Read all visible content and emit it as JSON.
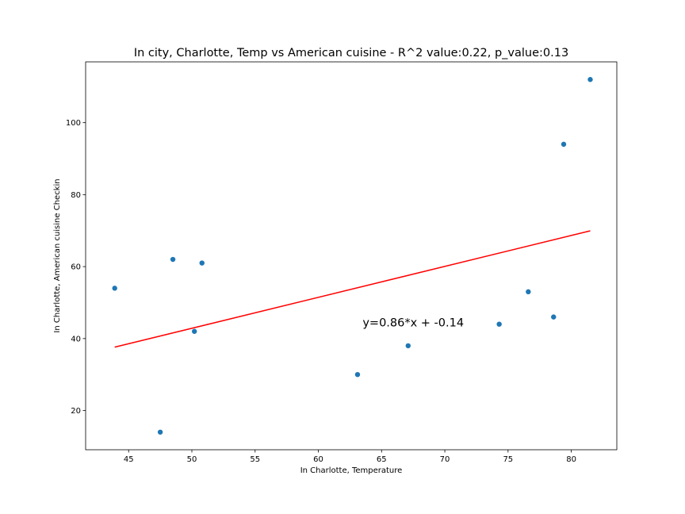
{
  "chart_data": {
    "type": "scatter",
    "title": "In city, Charlotte, Temp vs American cuisine - R^2 value:0.22, p_value:0.13",
    "xlabel": "In Charlotte,  Temperature",
    "ylabel": "In Charlotte,  American cuisine Checkin",
    "xlim": [
      41.6,
      83.6
    ],
    "ylim": [
      9.1,
      116.9
    ],
    "xticks": [
      45,
      50,
      55,
      60,
      65,
      70,
      75,
      80
    ],
    "yticks": [
      20,
      40,
      60,
      80,
      100
    ],
    "grid": false,
    "points": [
      {
        "x": 43.9,
        "y": 54
      },
      {
        "x": 47.5,
        "y": 14
      },
      {
        "x": 48.5,
        "y": 62
      },
      {
        "x": 50.2,
        "y": 42
      },
      {
        "x": 50.8,
        "y": 61
      },
      {
        "x": 63.1,
        "y": 30
      },
      {
        "x": 67.1,
        "y": 38
      },
      {
        "x": 74.3,
        "y": 44
      },
      {
        "x": 76.6,
        "y": 53
      },
      {
        "x": 78.6,
        "y": 46
      },
      {
        "x": 79.4,
        "y": 94
      },
      {
        "x": 81.5,
        "y": 112
      }
    ],
    "regression": {
      "slope": 0.86,
      "intercept": -0.14,
      "x_range": [
        43.9,
        81.5
      ],
      "equation_text": "y=0.86*x + -0.14",
      "equation_anchor": {
        "x": 63.5,
        "y": 44.5
      }
    },
    "colors": {
      "points": "#1f77b4",
      "line": "#ff0000",
      "axes": "#000000"
    }
  }
}
